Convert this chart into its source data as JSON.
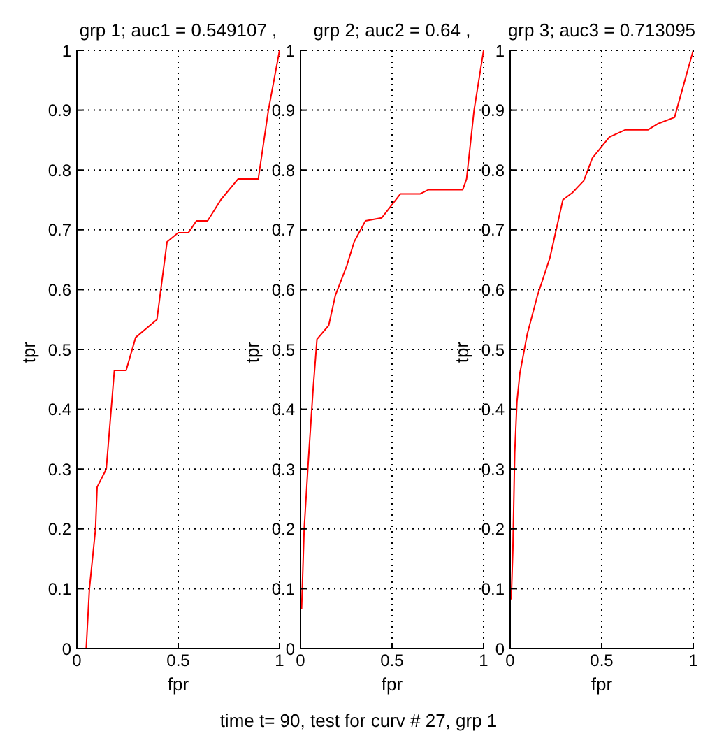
{
  "chart_data": [
    {
      "type": "line",
      "title": "grp 1; auc1 = 0.549107 ,",
      "xlabel": "fpr",
      "ylabel": "tpr",
      "xlim": [
        0,
        1
      ],
      "xticks": [
        0,
        0.5,
        1
      ],
      "ylim": [
        0,
        1
      ],
      "yticks": [
        0,
        0.1,
        0.2,
        0.3,
        0.4,
        0.5,
        0.6,
        0.7,
        0.8,
        0.9,
        1
      ],
      "grid": true,
      "line_style": "solid",
      "marker": "none",
      "series": [
        {
          "color": "#ff0000",
          "x": [
            0.046,
            0.062,
            0.092,
            0.1,
            0.145,
            0.185,
            0.243,
            0.29,
            0.395,
            0.445,
            0.5,
            0.55,
            0.59,
            0.645,
            0.71,
            0.795,
            0.895,
            0.945,
            1
          ],
          "values": [
            0,
            0.1,
            0.2,
            0.27,
            0.3,
            0.465,
            0.465,
            0.52,
            0.55,
            0.68,
            0.695,
            0.695,
            0.715,
            0.715,
            0.75,
            0.785,
            0.785,
            0.9,
            1
          ]
        }
      ]
    },
    {
      "type": "line",
      "title": "grp 2; auc2 = 0.64 ,",
      "xlabel": "fpr",
      "ylabel": "tpr",
      "xlim": [
        0,
        1
      ],
      "xticks": [
        0,
        0.5,
        1
      ],
      "ylim": [
        0,
        1
      ],
      "yticks": [
        0,
        0.1,
        0.2,
        0.3,
        0.4,
        0.5,
        0.6,
        0.7,
        0.8,
        0.9,
        1
      ],
      "grid": true,
      "line_style": "solid",
      "marker": "none",
      "annotations": [
        "time t= 90, test for curv # 27, grp 1"
      ],
      "series": [
        {
          "color": "#ff0000",
          "x": [
            0.006,
            0.02,
            0.043,
            0.068,
            0.09,
            0.154,
            0.19,
            0.253,
            0.293,
            0.355,
            0.444,
            0.546,
            0.654,
            0.7,
            0.886,
            0.907,
            0.948,
            1
          ],
          "values": [
            0.066,
            0.2,
            0.315,
            0.43,
            0.517,
            0.54,
            0.59,
            0.64,
            0.68,
            0.715,
            0.72,
            0.76,
            0.76,
            0.767,
            0.767,
            0.785,
            0.9,
            1
          ]
        }
      ]
    },
    {
      "type": "line",
      "title": "grp 3; auc3 = 0.713095",
      "xlabel": "fpr",
      "ylabel": "tpr",
      "xlim": [
        0,
        1
      ],
      "xticks": [
        0,
        0.5,
        1
      ],
      "ylim": [
        0,
        1
      ],
      "yticks": [
        0,
        0.1,
        0.2,
        0.3,
        0.4,
        0.5,
        0.6,
        0.7,
        0.8,
        0.9,
        1
      ],
      "grid": true,
      "line_style": "solid",
      "marker": "none",
      "series": [
        {
          "color": "#ff0000",
          "x": [
            0.006,
            0.015,
            0.025,
            0.037,
            0.053,
            0.093,
            0.149,
            0.217,
            0.288,
            0.34,
            0.402,
            0.449,
            0.542,
            0.628,
            0.752,
            0.805,
            0.898,
            1
          ],
          "values": [
            0.082,
            0.167,
            0.327,
            0.412,
            0.46,
            0.525,
            0.59,
            0.653,
            0.75,
            0.762,
            0.782,
            0.82,
            0.855,
            0.867,
            0.867,
            0.877,
            0.888,
            1
          ]
        }
      ]
    }
  ]
}
